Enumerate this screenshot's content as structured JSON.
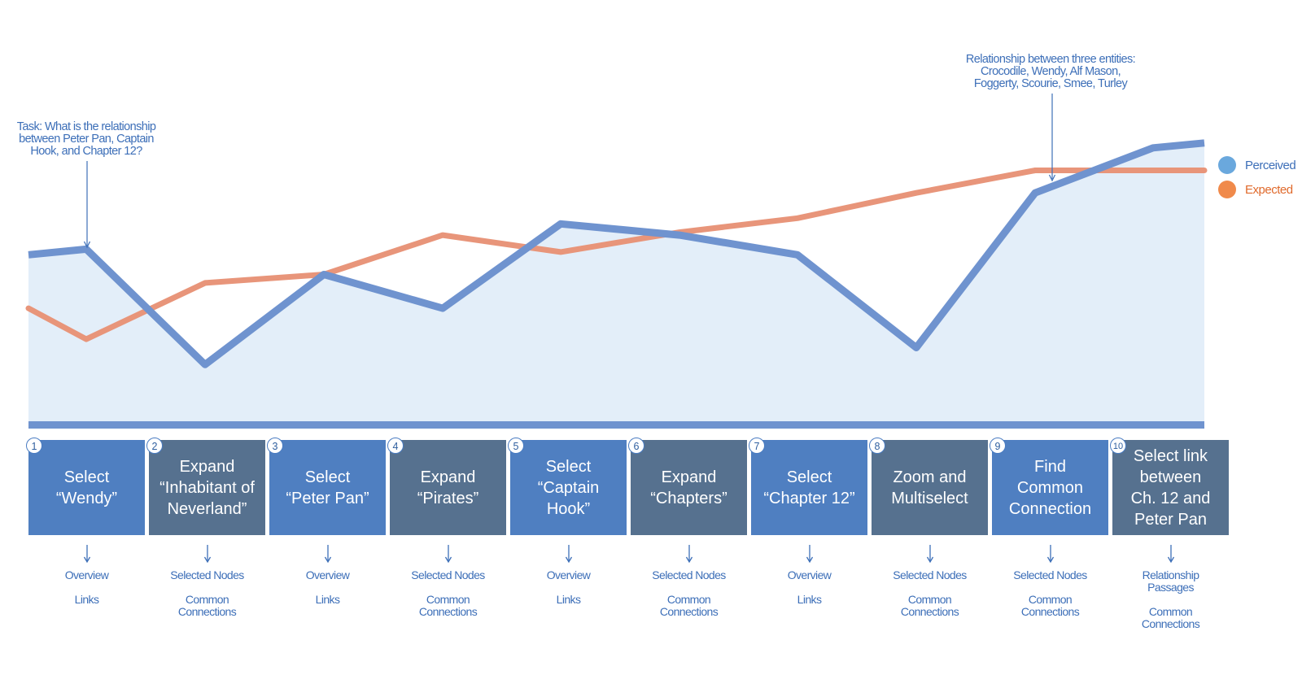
{
  "colors": {
    "perceived": "#6f93cf",
    "expected": "#e8957a",
    "perceived_marker": "#6aa8dd",
    "expected_marker": "#f08a4b",
    "area_fill": "#e3eef9",
    "baseline": "#6f93cf",
    "box_blue": "#4f7fc1",
    "box_slate": "#56718f",
    "annotation_text": "#3d6fb8"
  },
  "annotations": {
    "task": [
      "Task: What is the relationship",
      "between Peter Pan, Captain",
      "Hook, and Chapter 12?"
    ],
    "relationship": [
      "Relationship between three entities:",
      "Crocodile, Wendy, Alf Mason,",
      "Foggerty, Scourie, Smee, Turley"
    ]
  },
  "chart_data": {
    "type": "line",
    "x": [
      1,
      2,
      3,
      4,
      5,
      6,
      7,
      8,
      9,
      10
    ],
    "ylim": [
      0,
      100
    ],
    "series": [
      {
        "name": "Perceived",
        "start": 58,
        "values": [
          60,
          19,
          51,
          39,
          69,
          65,
          58,
          25,
          80,
          96
        ]
      },
      {
        "name": "Expected",
        "start": 39,
        "values": [
          28,
          48,
          51,
          65,
          59,
          66,
          71,
          80,
          88,
          88
        ]
      }
    ]
  },
  "legend": {
    "perceived": "Perceived",
    "expected": "Expected"
  },
  "steps": [
    {
      "num": "1",
      "label": "Select\n“Wendy”",
      "style": "blue",
      "features": [
        "Overview",
        "Links"
      ]
    },
    {
      "num": "2",
      "label": "Expand\n“Inhabitant of\nNeverland”",
      "style": "slate",
      "features": [
        "Selected Nodes",
        "Common\nConnections"
      ]
    },
    {
      "num": "3",
      "label": "Select\n“Peter Pan”",
      "style": "blue",
      "features": [
        "Overview",
        "Links"
      ]
    },
    {
      "num": "4",
      "label": "Expand\n“Pirates”",
      "style": "slate",
      "features": [
        "Selected Nodes",
        "Common\nConnections"
      ]
    },
    {
      "num": "5",
      "label": "Select\n“Captain\nHook”",
      "style": "blue",
      "features": [
        "Overview",
        "Links"
      ]
    },
    {
      "num": "6",
      "label": "Expand\n“Chapters”",
      "style": "slate",
      "features": [
        "Selected Nodes",
        "Common\nConnections"
      ]
    },
    {
      "num": "7",
      "label": "Select\n“Chapter 12”",
      "style": "blue",
      "features": [
        "Overview",
        "Links"
      ]
    },
    {
      "num": "8",
      "label": "Zoom and\nMultiselect",
      "style": "slate",
      "features": [
        "Selected Nodes",
        "Common\nConnections"
      ]
    },
    {
      "num": "9",
      "label": "Find\nCommon\nConnection",
      "style": "blue",
      "features": [
        "Selected Nodes",
        "Common\nConnections"
      ]
    },
    {
      "num": "10",
      "label": "Select link\nbetween\nCh. 12 and\nPeter Pan",
      "style": "slate",
      "features": [
        "Relationship\nPassages",
        "Common\nConnections"
      ]
    }
  ]
}
